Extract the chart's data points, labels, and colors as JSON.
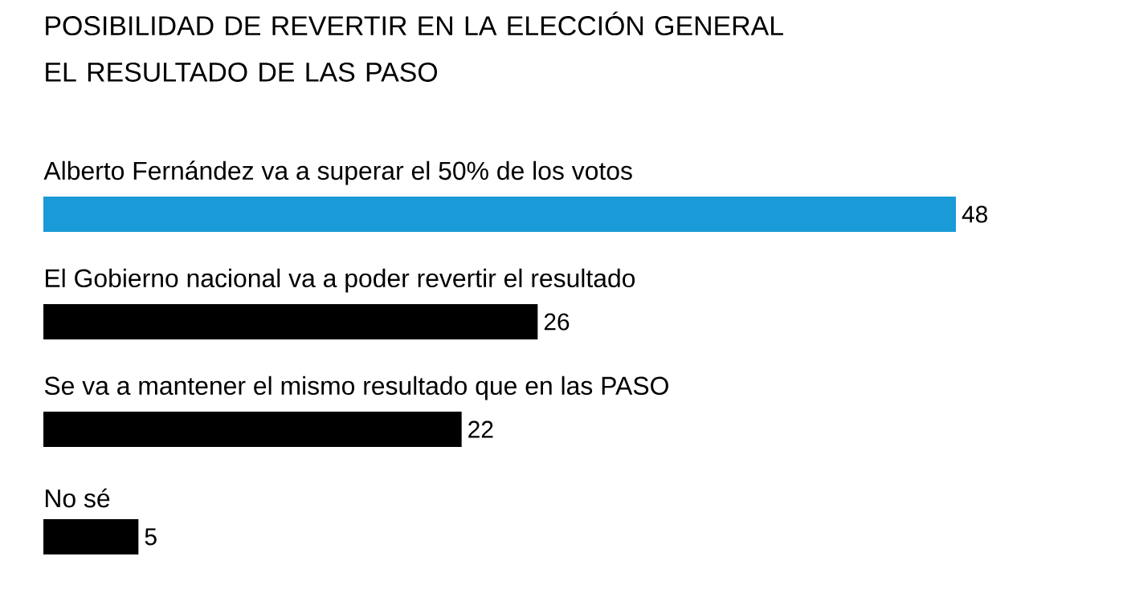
{
  "chart_data": {
    "type": "bar",
    "orientation": "horizontal",
    "title": "POSIBILIDAD DE REVERTIR EN LA ELECCIÓN GENERAL\nEL RESULTADO DE LAS PASO",
    "categories": [
      "Alberto Fernández va a superar el 50% de los votos",
      "El Gobierno nacional va a poder revertir el resultado",
      "Se va a mantener el mismo resultado que en las PASO",
      "No sé"
    ],
    "values": [
      48,
      26,
      22,
      5
    ],
    "colors": [
      "#1a9ad6",
      "#000000",
      "#000000",
      "#000000"
    ],
    "data_labels": true
  }
}
